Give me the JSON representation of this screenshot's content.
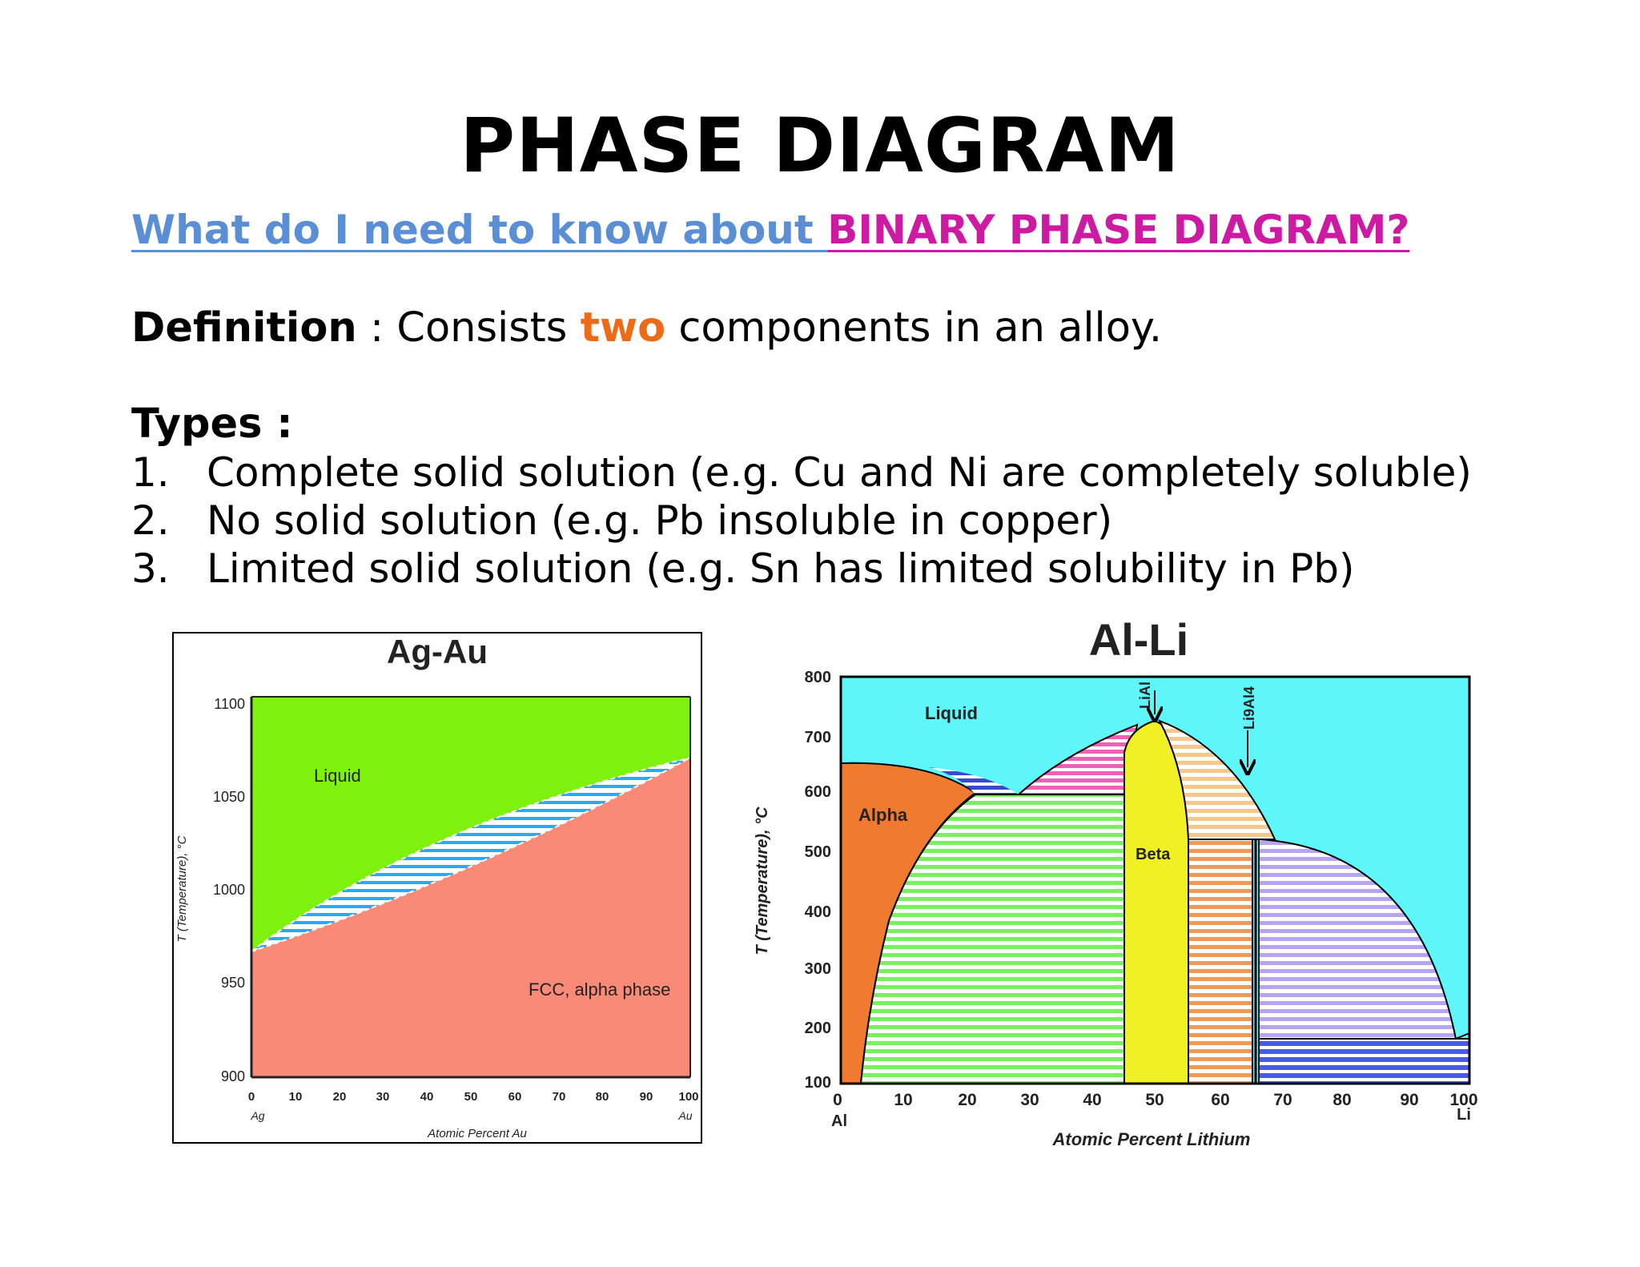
{
  "slide": {
    "title": "PHASE DIAGRAM",
    "subtitle": {
      "part1": "What do I need to know about ",
      "part2": "BINARY PHASE DIAGRAM?"
    },
    "definition": {
      "label": "Definition",
      "separator": " : Consists ",
      "highlight": "two",
      "rest": " components in an alloy."
    },
    "types_heading": "Types :",
    "types": [
      {
        "num": "1.",
        "text": "Complete solid solution (e.g. Cu and Ni are completely soluble)"
      },
      {
        "num": "2.",
        "text": "No solid solution (e.g. Pb insoluble in copper)"
      },
      {
        "num": "3.",
        "text": "Limited solid solution (e.g. Sn has limited solubility in Pb)"
      }
    ],
    "colors": {
      "subtitle_blue": "#5b8fd5",
      "subtitle_pink": "#cc1aa2",
      "highlight_orange": "#ed6a16"
    }
  },
  "diagram_agau": {
    "title": "Ag-Au",
    "ylabel": "T (Temperature), °C",
    "xlabel": "Atomic Percent Au",
    "yticks": [
      "1100",
      "1050",
      "1000",
      "950",
      "900"
    ],
    "xticks": [
      "0",
      "10",
      "20",
      "30",
      "40",
      "50",
      "60",
      "70",
      "80",
      "90",
      "100"
    ],
    "x_left_element": "Ag",
    "x_right_element": "Au",
    "regions": {
      "liquid": "Liquid",
      "solid": "FCC, alpha phase"
    },
    "colors": {
      "liquid": "#7ef20c",
      "solid": "#f98a78",
      "two_phase_stripe": "#2fa9ee"
    }
  },
  "diagram_alli": {
    "title": "Al-Li",
    "ylabel": "T (Temperature), °C",
    "xlabel": "Atomic Percent Lithium",
    "yticks": [
      "800",
      "700",
      "600",
      "500",
      "400",
      "300",
      "200",
      "100"
    ],
    "xticks": [
      "0",
      "10",
      "20",
      "30",
      "40",
      "50",
      "60",
      "70",
      "80",
      "90",
      "100"
    ],
    "x_left_element": "Al",
    "x_right_element": "Li",
    "regions": {
      "liquid": "Liquid",
      "alpha": "Alpha",
      "beta": "Beta"
    },
    "arrows": {
      "lial": "LiAl",
      "li9al4": "Li9Al4"
    },
    "colors": {
      "liquid": "#5ef6f8",
      "alpha": "#f07a30",
      "beta": "#f0f024",
      "alpha_beta": "#7af060",
      "beta_li2al": "#f09a58",
      "li2al_li9al4": "#b8a4f4",
      "li9al4_li": "#4a5ae8",
      "pink_region": "#f060b8",
      "tan_region": "#f8c88a"
    }
  }
}
